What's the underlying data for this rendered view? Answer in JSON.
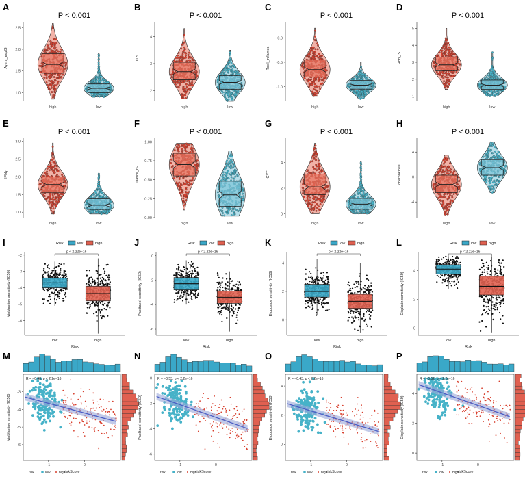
{
  "colors": {
    "high_fill": "#e8725e",
    "high_point": "#d8412f",
    "low_fill": "#7cc4d8",
    "low_point": "#46b2c8",
    "box_high": "#e06050",
    "box_low": "#3aa8c8",
    "reg_line": "#4a5cc4"
  },
  "chart_data": [
    {
      "id": "A",
      "type": "violin",
      "label": "A",
      "pvalue": "P < 0.001",
      "ylabel": "Ayers_expIS",
      "ylim": [
        0.8,
        2.6
      ],
      "ticks": [
        "1.0",
        "1.5",
        "2.0",
        "2.5"
      ],
      "tick_values": [
        1.0,
        1.5,
        2.0,
        2.5
      ],
      "categories": [
        "high",
        "low"
      ],
      "series": [
        {
          "name": "high",
          "min": 0.85,
          "q1": 1.45,
          "median": 1.65,
          "q3": 1.9,
          "max": 2.6
        },
        {
          "name": "low",
          "min": 0.9,
          "q1": 1.0,
          "median": 1.1,
          "q3": 1.2,
          "max": 1.9
        }
      ]
    },
    {
      "id": "B",
      "type": "violin",
      "label": "B",
      "pvalue": "P < 0.001",
      "ylabel": "TLS",
      "ylim": [
        1.6,
        4.5
      ],
      "ticks": [
        "2",
        "3",
        "4"
      ],
      "tick_values": [
        2,
        3,
        4
      ],
      "categories": [
        "high",
        "low"
      ],
      "series": [
        {
          "name": "high",
          "min": 1.7,
          "q1": 2.4,
          "median": 2.7,
          "q3": 3.05,
          "max": 4.3
        },
        {
          "name": "low",
          "min": 1.6,
          "q1": 2.05,
          "median": 2.3,
          "q3": 2.55,
          "max": 3.5
        }
      ]
    },
    {
      "id": "C",
      "type": "violin",
      "label": "C",
      "pvalue": "P < 0.001",
      "ylabel": "Tcell_inflamed",
      "ylim": [
        -1.3,
        0.3
      ],
      "ticks": [
        "-1.0",
        "-0.5",
        "0.0"
      ],
      "tick_values": [
        -1.0,
        -0.5,
        0.0
      ],
      "categories": [
        "high",
        "low"
      ],
      "series": [
        {
          "name": "high",
          "min": -1.2,
          "q1": -0.8,
          "median": -0.65,
          "q3": -0.45,
          "max": 0.2
        },
        {
          "name": "low",
          "min": -1.25,
          "q1": -1.05,
          "median": -0.97,
          "q3": -0.87,
          "max": -0.5
        }
      ]
    },
    {
      "id": "D",
      "type": "violin",
      "label": "D",
      "pvalue": "P < 0.001",
      "ylabel": "Roh_IS",
      "ylim": [
        0.7,
        5.3
      ],
      "ticks": [
        "1",
        "2",
        "3",
        "4",
        "5"
      ],
      "tick_values": [
        1,
        2,
        3,
        4,
        5
      ],
      "categories": [
        "high",
        "low"
      ],
      "series": [
        {
          "name": "high",
          "min": 1.4,
          "q1": 2.5,
          "median": 2.85,
          "q3": 3.3,
          "max": 5.0
        },
        {
          "name": "low",
          "min": 1.0,
          "q1": 1.4,
          "median": 1.65,
          "q3": 1.95,
          "max": 3.6
        }
      ]
    },
    {
      "id": "E",
      "type": "violin",
      "label": "E",
      "pvalue": "P < 0.001",
      "ylabel": "IFNγ",
      "ylim": [
        0.85,
        3.05
      ],
      "ticks": [
        "1.0",
        "1.5",
        "2.0",
        "2.5",
        "3.0"
      ],
      "tick_values": [
        1.0,
        1.5,
        2.0,
        2.5,
        3.0
      ],
      "categories": [
        "high",
        "low"
      ],
      "series": [
        {
          "name": "high",
          "min": 0.95,
          "q1": 1.55,
          "median": 1.78,
          "q3": 2.0,
          "max": 2.95
        },
        {
          "name": "low",
          "min": 0.95,
          "q1": 1.08,
          "median": 1.2,
          "q3": 1.38,
          "max": 2.1
        }
      ]
    },
    {
      "id": "F",
      "type": "violin",
      "label": "F",
      "pvalue": "P < 0.001",
      "ylabel": "Davoli_IS",
      "ylim": [
        0.0,
        1.03
      ],
      "ticks": [
        "0.00",
        "0.25",
        "0.50",
        "0.75",
        "1.00"
      ],
      "tick_values": [
        0.0,
        0.25,
        0.5,
        0.75,
        1.0
      ],
      "categories": [
        "high",
        "low"
      ],
      "series": [
        {
          "name": "high",
          "min": 0.1,
          "q1": 0.55,
          "median": 0.7,
          "q3": 0.85,
          "max": 0.98
        },
        {
          "name": "low",
          "min": 0.02,
          "q1": 0.15,
          "median": 0.3,
          "q3": 0.48,
          "max": 0.88
        }
      ]
    },
    {
      "id": "G",
      "type": "violin",
      "label": "G",
      "pvalue": "P < 0.001",
      "ylabel": "CYT",
      "ylim": [
        -0.3,
        5.8
      ],
      "ticks": [
        "0",
        "2",
        "4"
      ],
      "tick_values": [
        0,
        2,
        4
      ],
      "categories": [
        "high",
        "low"
      ],
      "series": [
        {
          "name": "high",
          "min": 0.0,
          "q1": 1.5,
          "median": 2.1,
          "q3": 3.1,
          "max": 5.5
        },
        {
          "name": "low",
          "min": 0.0,
          "q1": 0.35,
          "median": 0.75,
          "q3": 1.2,
          "max": 4.1
        }
      ]
    },
    {
      "id": "H",
      "type": "violin",
      "label": "H",
      "pvalue": "P < 0.001",
      "ylabel": "chemokines",
      "ylim": [
        -6.5,
        6.0
      ],
      "ticks": [
        "-4",
        "0",
        "4"
      ],
      "tick_values": [
        -4,
        0,
        4
      ],
      "categories": [
        "high",
        "low"
      ],
      "series": [
        {
          "name": "high",
          "min": -6,
          "q1": -2.5,
          "median": -1.2,
          "q3": 0.3,
          "max": 3.5
        },
        {
          "name": "low",
          "min": -2.5,
          "q1": 0.3,
          "median": 1.5,
          "q3": 2.8,
          "max": 5.6
        }
      ]
    },
    {
      "id": "I",
      "type": "box",
      "label": "I",
      "legend_title": "Risk",
      "legend": [
        "low",
        "high"
      ],
      "pvalue": "p < 2.22e−16",
      "ylabel": "Vinblastine sensitivity (IC50)",
      "xlabel": "Risk",
      "ylim": [
        -6.9,
        -1.8
      ],
      "ticks": [
        "-2",
        "-3",
        "-4",
        "-5",
        "-6"
      ],
      "tick_values": [
        -2,
        -3,
        -4,
        -5,
        -6
      ],
      "categories": [
        "low",
        "high"
      ],
      "series": [
        {
          "name": "low",
          "min": -5.1,
          "q1": -4.0,
          "median": -3.7,
          "q3": -3.4,
          "max": -2.4
        },
        {
          "name": "high",
          "min": -6.8,
          "q1": -4.8,
          "median": -4.35,
          "q3": -3.9,
          "max": -2.2
        }
      ]
    },
    {
      "id": "J",
      "type": "box",
      "label": "J",
      "legend_title": "Risk",
      "legend": [
        "low",
        "high"
      ],
      "pvalue": "p < 2.22e−16",
      "ylabel": "Paclitaxel sensitivity (IC50)",
      "xlabel": "Risk",
      "ylim": [
        -6.5,
        0.3
      ],
      "ticks": [
        "0",
        "-2",
        "-4",
        "-6"
      ],
      "tick_values": [
        0,
        -2,
        -4,
        -6
      ],
      "categories": [
        "low",
        "high"
      ],
      "series": [
        {
          "name": "low",
          "min": -4.0,
          "q1": -2.8,
          "median": -2.3,
          "q3": -1.8,
          "max": -0.4
        },
        {
          "name": "high",
          "min": -6.2,
          "q1": -3.9,
          "median": -3.4,
          "q3": -2.9,
          "max": -1.3
        }
      ]
    },
    {
      "id": "K",
      "type": "box",
      "label": "K",
      "legend_title": "Risk",
      "legend": [
        "low",
        "high"
      ],
      "pvalue": "p < 2.22e−16",
      "ylabel": "Etoposide sensitivity (IC50)",
      "xlabel": "Risk",
      "ylim": [
        -1.1,
        4.8
      ],
      "ticks": [
        "4",
        "2",
        "0"
      ],
      "tick_values": [
        4,
        2,
        0
      ],
      "categories": [
        "low",
        "high"
      ],
      "series": [
        {
          "name": "low",
          "min": 0.3,
          "q1": 1.6,
          "median": 2.0,
          "q3": 2.5,
          "max": 4.3
        },
        {
          "name": "high",
          "min": -0.9,
          "q1": 0.8,
          "median": 1.3,
          "q3": 1.8,
          "max": 4.0
        }
      ]
    },
    {
      "id": "L",
      "type": "box",
      "label": "L",
      "legend_title": "Risk",
      "legend": [
        "low",
        "high"
      ],
      "pvalue": "p < 2.22e−16",
      "ylabel": "Cisplatin sensitivity (IC50)",
      "xlabel": "Risk",
      "ylim": [
        -0.5,
        5.3
      ],
      "ticks": [
        "4",
        "2",
        "0"
      ],
      "tick_values": [
        4,
        2,
        0
      ],
      "categories": [
        "low",
        "high"
      ],
      "series": [
        {
          "name": "low",
          "min": 2.7,
          "q1": 3.75,
          "median": 4.1,
          "q3": 4.4,
          "max": 5.0
        },
        {
          "name": "high",
          "min": -0.3,
          "q1": 2.3,
          "median": 2.9,
          "q3": 3.6,
          "max": 5.0
        }
      ]
    },
    {
      "id": "M",
      "type": "scatter",
      "label": "M",
      "stat": "R = −0.48, p < 2.2e−16",
      "ylabel": "Vinblastine sensitivity (IC50)",
      "xlabel": "riskScore",
      "legend_title": "risk",
      "legend": [
        "low",
        "high"
      ],
      "xlim": [
        -1.7,
        1.0
      ],
      "xticks": [
        "-1",
        "0"
      ],
      "xtick_values": [
        -1,
        0
      ],
      "ylim": [
        -6.9,
        -2.0
      ],
      "yticks": [
        "-3",
        "-4",
        "-5",
        "-6"
      ],
      "ytick_values": [
        -3,
        -4,
        -5,
        -6
      ],
      "fit": {
        "slope": -0.55,
        "intercept": -4.2
      }
    },
    {
      "id": "N",
      "type": "scatter",
      "label": "N",
      "stat": "R = −0.53, p < 2.2e−16",
      "ylabel": "Paclitaxel sensitivity (IC50)",
      "xlabel": "riskScore",
      "legend_title": "risk",
      "legend": [
        "low",
        "high"
      ],
      "xlim": [
        -1.7,
        1.0
      ],
      "xticks": [
        "-1",
        "0"
      ],
      "xtick_values": [
        -1,
        0
      ],
      "ylim": [
        -6.5,
        0.3
      ],
      "yticks": [
        "0",
        "-2",
        "-4",
        "-6"
      ],
      "ytick_values": [
        0,
        -2,
        -4,
        -6
      ],
      "fit": {
        "slope": -1.0,
        "intercept": -3.1
      }
    },
    {
      "id": "O",
      "type": "scatter",
      "label": "O",
      "stat": "R = −0.43, p < 2.2e−16",
      "ylabel": "Etoposide sensitivity (IC50)",
      "xlabel": "riskScore",
      "legend_title": "risk",
      "legend": [
        "low",
        "high"
      ],
      "xlim": [
        -1.7,
        1.0
      ],
      "xticks": [
        "-1",
        "0"
      ],
      "xtick_values": [
        -1,
        0
      ],
      "ylim": [
        -1.1,
        4.8
      ],
      "yticks": [
        "4",
        "2",
        "0"
      ],
      "ytick_values": [
        4,
        2,
        0
      ],
      "fit": {
        "slope": -0.75,
        "intercept": 1.55
      }
    },
    {
      "id": "P",
      "type": "scatter",
      "label": "P",
      "stat": "R = −0.52, p < 2.2e−16",
      "ylabel": "Cisplatin sensitivity (IC50)",
      "xlabel": "riskScore",
      "legend_title": "risk",
      "legend": [
        "low",
        "high"
      ],
      "xlim": [
        -1.7,
        1.0
      ],
      "xticks": [
        "-1",
        "0"
      ],
      "xtick_values": [
        -1,
        0
      ],
      "ylim": [
        -0.5,
        5.3
      ],
      "yticks": [
        "4",
        "2",
        "0"
      ],
      "ytick_values": [
        4,
        2,
        0
      ],
      "fit": {
        "slope": -0.85,
        "intercept": 3.2
      }
    }
  ]
}
